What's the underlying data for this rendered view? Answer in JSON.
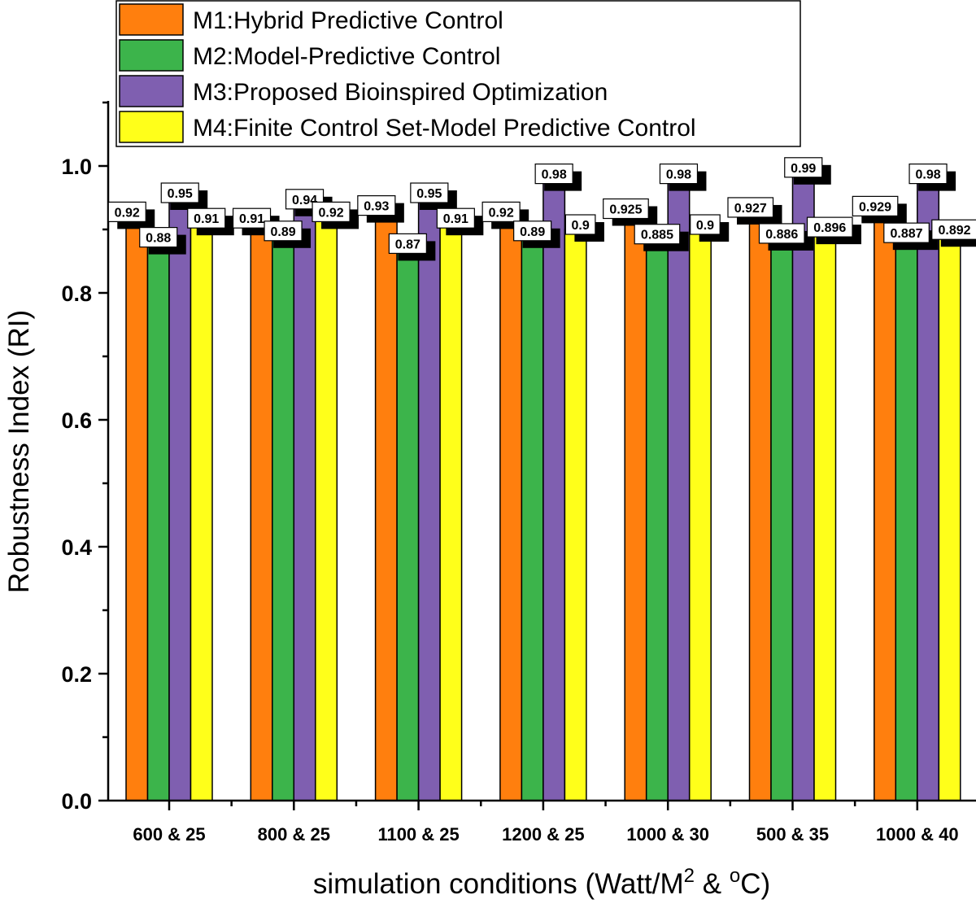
{
  "chart_data": {
    "type": "bar",
    "xlabel": "simulation conditions (Watt/M",
    "xlabel_sup1": "2",
    "xlabel_mid": " & ",
    "xlabel_sup2": "o",
    "xlabel_end": "C)",
    "ylabel": "Robustness Index (RI)",
    "ylim": [
      0,
      1.1
    ],
    "yticks": [
      0.0,
      0.2,
      0.4,
      0.6,
      0.8,
      1.0
    ],
    "ytick_labels": [
      "0.0",
      "0.2",
      "0.4",
      "0.6",
      "0.8",
      "1.0"
    ],
    "categories": [
      "600 & 25",
      "800 & 25",
      "1100 & 25",
      "1200 & 25",
      "1000 & 30",
      "500 & 35",
      "1000 & 40"
    ],
    "legend_position": "top-left",
    "grid": false,
    "series": [
      {
        "name": "M1:Hybrid Predictive Control",
        "color": "#ff7f0e",
        "values": [
          0.92,
          0.91,
          0.93,
          0.92,
          0.925,
          0.927,
          0.929
        ],
        "labels": [
          "0.92",
          "0.91",
          "0.93",
          "0.92",
          "0.925",
          "0.927",
          "0.929"
        ]
      },
      {
        "name": "M2:Model-Predictive Control",
        "color": "#3cb44b",
        "values": [
          0.88,
          0.89,
          0.87,
          0.89,
          0.885,
          0.886,
          0.887
        ],
        "labels": [
          "0.88",
          "0.89",
          "0.87",
          "0.89",
          "0.885",
          "0.886",
          "0.887"
        ]
      },
      {
        "name": "M3:Proposed Bioinspired Optimization",
        "color": "#7f5fb0",
        "values": [
          0.95,
          0.94,
          0.95,
          0.98,
          0.98,
          0.99,
          0.98
        ],
        "labels": [
          "0.95",
          "0.94",
          "0.95",
          "0.98",
          "0.98",
          "0.99",
          "0.98"
        ]
      },
      {
        "name": "M4:Finite Control Set-Model Predictive Control",
        "color": "#ffff1a",
        "values": [
          0.91,
          0.92,
          0.91,
          0.9,
          0.9,
          0.896,
          0.892
        ],
        "labels": [
          "0.91",
          "0.92",
          "0.91",
          "0.9",
          "0.9",
          "0.896",
          "0.892"
        ]
      }
    ]
  }
}
